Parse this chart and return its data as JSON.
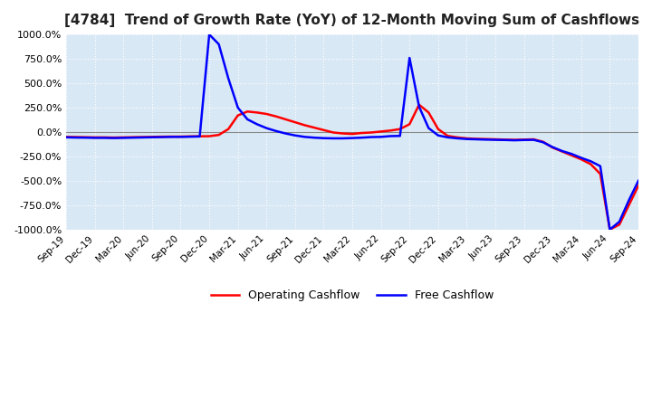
{
  "title": "[4784]  Trend of Growth Rate (YoY) of 12-Month Moving Sum of Cashflows",
  "ylim": [
    -1000,
    1000
  ],
  "yticks": [
    -1000,
    -750,
    -500,
    -250,
    0,
    250,
    500,
    750,
    1000
  ],
  "ytick_labels": [
    "-1000.0%",
    "-750.0%",
    "-500.0%",
    "-250.0%",
    "0.0%",
    "250.0%",
    "500.0%",
    "750.0%",
    "1000.0%"
  ],
  "background_color": "#d9e8f5",
  "grid_color": "#ffffff",
  "legend": [
    "Operating Cashflow",
    "Free Cashflow"
  ],
  "legend_colors": [
    "#ff0000",
    "#0000ff"
  ],
  "xtick_indices": [
    0,
    3,
    6,
    9,
    12,
    15,
    18,
    21,
    24,
    27,
    30,
    33,
    36,
    39,
    42,
    45,
    48,
    51,
    54,
    57,
    60
  ],
  "xtick_labels": [
    "Sep-19",
    "Dec-19",
    "Mar-20",
    "Jun-20",
    "Sep-20",
    "Dec-20",
    "Mar-21",
    "Jun-21",
    "Sep-21",
    "Dec-21",
    "Mar-22",
    "Jun-22",
    "Sep-22",
    "Dec-22",
    "Mar-23",
    "Jun-23",
    "Sep-23",
    "Dec-23",
    "Mar-24",
    "Jun-24",
    "Sep-24"
  ],
  "n_points": 61,
  "operating_cashflow": [
    -50,
    -52,
    -53,
    -55,
    -55,
    -57,
    -55,
    -53,
    -52,
    -50,
    -48,
    -47,
    -47,
    -45,
    -44,
    -43,
    -30,
    30,
    170,
    210,
    200,
    185,
    160,
    130,
    100,
    70,
    45,
    20,
    -5,
    -15,
    -20,
    -10,
    -5,
    5,
    15,
    30,
    80,
    280,
    200,
    30,
    -40,
    -55,
    -65,
    -70,
    -72,
    -75,
    -78,
    -80,
    -78,
    -75,
    -100,
    -160,
    -200,
    -240,
    -280,
    -330,
    -430,
    -1000,
    -950,
    -750,
    -550
  ],
  "free_cashflow": [
    -55,
    -57,
    -58,
    -60,
    -60,
    -62,
    -60,
    -58,
    -56,
    -54,
    -52,
    -50,
    -50,
    -48,
    -46,
    1000,
    900,
    550,
    250,
    130,
    80,
    40,
    10,
    -15,
    -35,
    -50,
    -58,
    -63,
    -65,
    -65,
    -62,
    -58,
    -52,
    -50,
    -42,
    -40,
    760,
    260,
    40,
    -35,
    -55,
    -65,
    -72,
    -75,
    -78,
    -80,
    -82,
    -85,
    -82,
    -80,
    -105,
    -155,
    -195,
    -225,
    -265,
    -300,
    -350,
    -1000,
    -920,
    -700,
    -500
  ]
}
